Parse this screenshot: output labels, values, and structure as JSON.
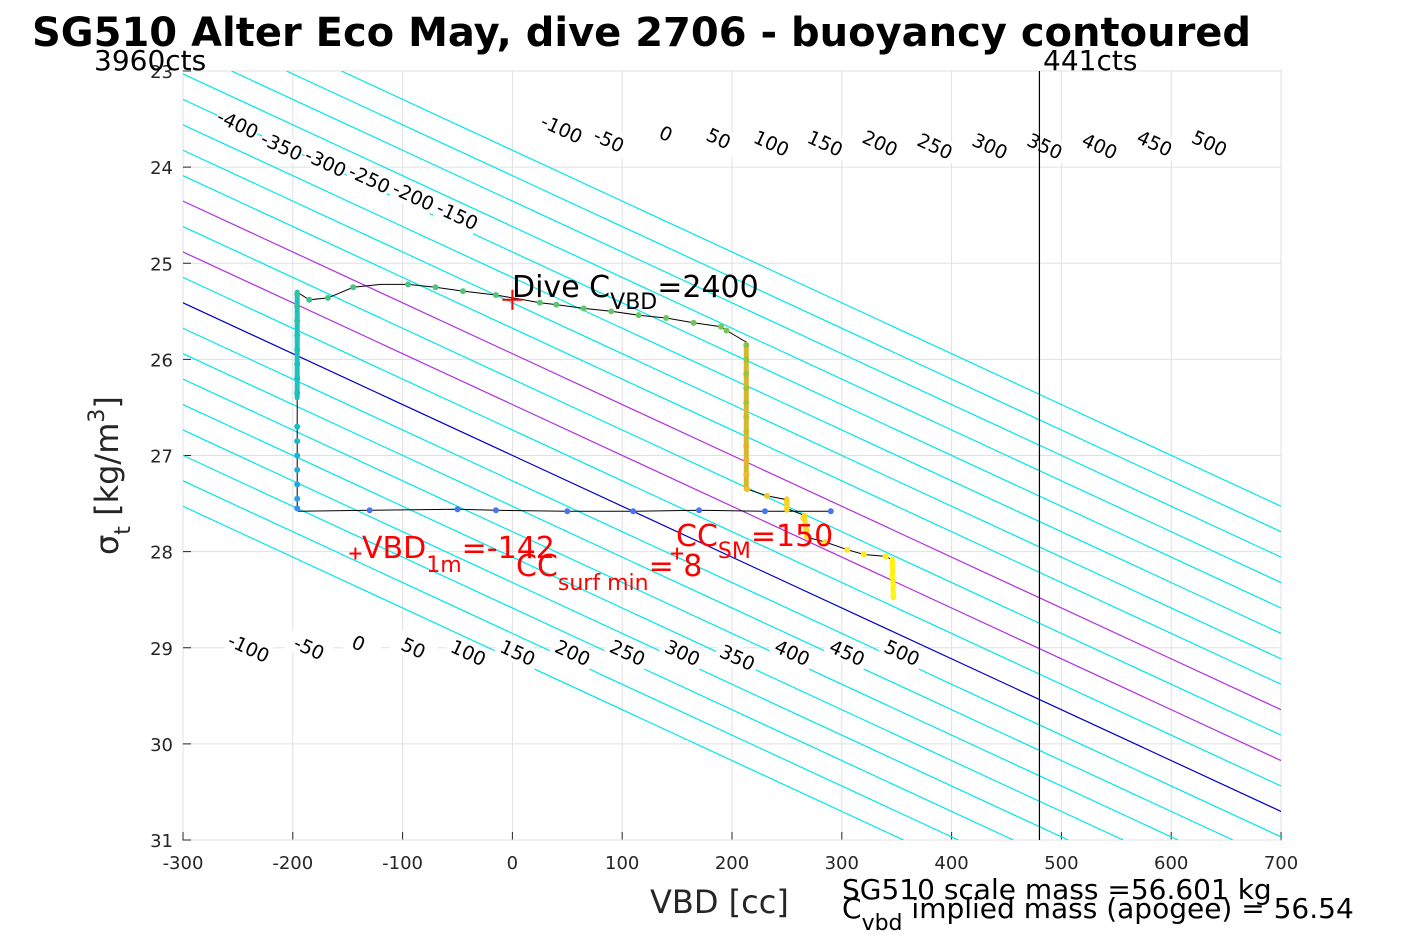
{
  "chart_data": {
    "type": "scatter",
    "title": "SG510 Alter Eco May, dive 2706 - buoyancy contoured",
    "xlabel": "VBD [cc]",
    "ylabel_main": "σ",
    "ylabel_sub": "t",
    "ylabel_unit_pre": " [kg/m",
    "ylabel_unit_sup": "3",
    "ylabel_unit_post": "]",
    "xlim": [
      -300,
      700
    ],
    "ylim": [
      23,
      31
    ],
    "y_reversed": true,
    "grid": true,
    "xticks": [
      "-300",
      "-200",
      "-100",
      "0",
      "100",
      "200",
      "300",
      "400",
      "500",
      "600",
      "700"
    ],
    "yticks": [
      "23",
      "24",
      "25",
      "26",
      "27",
      "28",
      "29",
      "30",
      "31"
    ],
    "corner_labels": {
      "left": "3960cts",
      "right": "441cts"
    },
    "limit_line_x": 480,
    "contour_step": 50,
    "contour_slope_cc_per_sigma": 189,
    "contour_levels": [
      -400,
      -350,
      -300,
      -250,
      -200,
      -150,
      -100,
      -50,
      0,
      50,
      100,
      150,
      200,
      250,
      300,
      350,
      400,
      450,
      500,
      550,
      600
    ],
    "contour_colors": {
      "zero": "#0000cc",
      "highlight": "#b030e0",
      "default": "#00e8e8"
    },
    "highlight_levels": [
      100,
      200
    ],
    "top_contour_labels": [
      {
        "text": "-400",
        "x": -250,
        "y": 23.55
      },
      {
        "text": "-350",
        "x": -210,
        "y": 23.78
      },
      {
        "text": "-300",
        "x": -170,
        "y": 23.95
      },
      {
        "text": "-250",
        "x": -130,
        "y": 24.12
      },
      {
        "text": "-200",
        "x": -90,
        "y": 24.3
      },
      {
        "text": "-150",
        "x": -50,
        "y": 24.5
      },
      {
        "text": "-100",
        "x": 45,
        "y": 23.6
      },
      {
        "text": "-50",
        "x": 88,
        "y": 23.72
      },
      {
        "text": "0",
        "x": 140,
        "y": 23.65
      },
      {
        "text": "50",
        "x": 188,
        "y": 23.7
      },
      {
        "text": "100",
        "x": 236,
        "y": 23.75
      },
      {
        "text": "150",
        "x": 285,
        "y": 23.75
      },
      {
        "text": "200",
        "x": 335,
        "y": 23.75
      },
      {
        "text": "250",
        "x": 385,
        "y": 23.78
      },
      {
        "text": "300",
        "x": 435,
        "y": 23.78
      },
      {
        "text": "350",
        "x": 485,
        "y": 23.78
      },
      {
        "text": "400",
        "x": 535,
        "y": 23.78
      },
      {
        "text": "450",
        "x": 585,
        "y": 23.75
      },
      {
        "text": "500",
        "x": 635,
        "y": 23.75
      }
    ],
    "bottom_contour_labels": [
      {
        "text": "-100",
        "x": -240,
        "y": 29.0
      },
      {
        "text": "-50",
        "x": -185,
        "y": 29.0
      },
      {
        "text": "0",
        "x": -140,
        "y": 28.95
      },
      {
        "text": "50",
        "x": -90,
        "y": 29.0
      },
      {
        "text": "100",
        "x": -40,
        "y": 29.05
      },
      {
        "text": "150",
        "x": 5,
        "y": 29.05
      },
      {
        "text": "200",
        "x": 55,
        "y": 29.05
      },
      {
        "text": "250",
        "x": 105,
        "y": 29.05
      },
      {
        "text": "300",
        "x": 155,
        "y": 29.05
      },
      {
        "text": "350",
        "x": 205,
        "y": 29.1
      },
      {
        "text": "400",
        "x": 255,
        "y": 29.05
      },
      {
        "text": "450",
        "x": 305,
        "y": 29.05
      },
      {
        "text": "500",
        "x": 355,
        "y": 29.05
      }
    ],
    "track": [
      [
        290,
        27.58
      ],
      [
        230,
        27.58
      ],
      [
        170,
        27.57
      ],
      [
        110,
        27.58
      ],
      [
        50,
        27.58
      ],
      [
        -15,
        27.57
      ],
      [
        -50,
        27.56
      ],
      [
        -130,
        27.57
      ],
      [
        -195,
        27.58
      ],
      [
        -196,
        27.55
      ],
      [
        -196,
        27.4
      ],
      [
        -196,
        27.2
      ],
      [
        -196,
        27.0
      ],
      [
        -196,
        26.8
      ],
      [
        -196,
        26.6
      ],
      [
        -196,
        26.4
      ],
      [
        -196,
        26.2
      ],
      [
        -196,
        26.0
      ],
      [
        -196,
        25.8
      ],
      [
        -196,
        25.6
      ],
      [
        -196,
        25.45
      ],
      [
        -196,
        25.3
      ],
      [
        -185,
        25.38
      ],
      [
        -168,
        25.36
      ],
      [
        -145,
        25.25
      ],
      [
        -120,
        25.22
      ],
      [
        -95,
        25.22
      ],
      [
        -70,
        25.25
      ],
      [
        -45,
        25.29
      ],
      [
        -15,
        25.33
      ],
      [
        5,
        25.37
      ],
      [
        25,
        25.41
      ],
      [
        40,
        25.43
      ],
      [
        65,
        25.47
      ],
      [
        90,
        25.5
      ],
      [
        115,
        25.54
      ],
      [
        140,
        25.57
      ],
      [
        165,
        25.62
      ],
      [
        190,
        25.66
      ],
      [
        195,
        25.7
      ],
      [
        213,
        25.82
      ],
      [
        213,
        26.0
      ],
      [
        213,
        26.2
      ],
      [
        213,
        26.4
      ],
      [
        213,
        26.6
      ],
      [
        213,
        26.8
      ],
      [
        213,
        27.0
      ],
      [
        213,
        27.2
      ],
      [
        214,
        27.35
      ],
      [
        232,
        27.42
      ],
      [
        250,
        27.46
      ],
      [
        250,
        27.55
      ],
      [
        265,
        27.62
      ],
      [
        268,
        27.75
      ],
      [
        268,
        27.85
      ],
      [
        285,
        27.9
      ],
      [
        305,
        27.98
      ],
      [
        320,
        28.03
      ],
      [
        340,
        28.05
      ],
      [
        345,
        28.08
      ],
      [
        346,
        28.2
      ],
      [
        347,
        28.3
      ],
      [
        347,
        28.45
      ]
    ],
    "dots": [
      {
        "x": 290,
        "y": 27.58,
        "c": "#4876f0"
      },
      {
        "x": 230,
        "y": 27.58,
        "c": "#4876f0"
      },
      {
        "x": 170,
        "y": 27.57,
        "c": "#4876f0"
      },
      {
        "x": 110,
        "y": 27.58,
        "c": "#4876f0"
      },
      {
        "x": 50,
        "y": 27.58,
        "c": "#4876f0"
      },
      {
        "x": -15,
        "y": 27.57,
        "c": "#4876f0"
      },
      {
        "x": -50,
        "y": 27.56,
        "c": "#4876f0"
      },
      {
        "x": -130,
        "y": 27.57,
        "c": "#4876f0"
      },
      {
        "x": -196,
        "y": 27.55,
        "c": "#3b8ef0"
      },
      {
        "x": -196,
        "y": 27.45,
        "c": "#2a9ee8"
      },
      {
        "x": -196,
        "y": 27.3,
        "c": "#22a8e0"
      },
      {
        "x": -196,
        "y": 27.15,
        "c": "#1cb0d8"
      },
      {
        "x": -196,
        "y": 27.0,
        "c": "#1cb4d2"
      },
      {
        "x": -196,
        "y": 26.85,
        "c": "#18b8cc"
      },
      {
        "x": -196,
        "y": 26.7,
        "c": "#18bcc8"
      },
      {
        "x": -196,
        "y": 26.35,
        "c": "#18bec4"
      },
      {
        "x": -196,
        "y": 26.2,
        "c": "#18c0c0"
      },
      {
        "x": -196,
        "y": 26.05,
        "c": "#18c2bc"
      },
      {
        "x": -196,
        "y": 25.9,
        "c": "#1cc4b6"
      },
      {
        "x": -196,
        "y": 25.75,
        "c": "#20c4b0"
      },
      {
        "x": -196,
        "y": 25.6,
        "c": "#28c4a8"
      },
      {
        "x": -196,
        "y": 25.45,
        "c": "#2ec4a0"
      },
      {
        "x": -196,
        "y": 25.32,
        "c": "#34c498"
      },
      {
        "x": -185,
        "y": 25.38,
        "c": "#3cc490"
      },
      {
        "x": -168,
        "y": 25.36,
        "c": "#40c48c"
      },
      {
        "x": -145,
        "y": 25.25,
        "c": "#46c488"
      },
      {
        "x": -95,
        "y": 25.22,
        "c": "#4cc484"
      },
      {
        "x": -70,
        "y": 25.25,
        "c": "#50c480"
      },
      {
        "x": -45,
        "y": 25.29,
        "c": "#54c47c"
      },
      {
        "x": -15,
        "y": 25.33,
        "c": "#58c478"
      },
      {
        "x": 25,
        "y": 25.41,
        "c": "#5cc474"
      },
      {
        "x": 40,
        "y": 25.43,
        "c": "#60c470"
      },
      {
        "x": 65,
        "y": 25.47,
        "c": "#64c46c"
      },
      {
        "x": 90,
        "y": 25.5,
        "c": "#68c468"
      },
      {
        "x": 115,
        "y": 25.54,
        "c": "#6cc464"
      },
      {
        "x": 140,
        "y": 25.57,
        "c": "#70c460"
      },
      {
        "x": 165,
        "y": 25.62,
        "c": "#74c45c"
      },
      {
        "x": 190,
        "y": 25.66,
        "c": "#78c458"
      },
      {
        "x": 195,
        "y": 25.7,
        "c": "#7cc454"
      },
      {
        "x": 213,
        "y": 25.85,
        "c": "#88c44c"
      },
      {
        "x": 213,
        "y": 26.0,
        "c": "#94c444"
      },
      {
        "x": 213,
        "y": 26.15,
        "c": "#9cc23e"
      },
      {
        "x": 213,
        "y": 26.3,
        "c": "#a6c038"
      },
      {
        "x": 213,
        "y": 26.45,
        "c": "#b0be34"
      },
      {
        "x": 213,
        "y": 26.6,
        "c": "#c0bc30"
      },
      {
        "x": 213,
        "y": 26.75,
        "c": "#d0b82e"
      },
      {
        "x": 213,
        "y": 26.9,
        "c": "#e0b42c"
      },
      {
        "x": 213,
        "y": 27.05,
        "c": "#eab22c"
      },
      {
        "x": 213,
        "y": 27.2,
        "c": "#f2b82a"
      },
      {
        "x": 214,
        "y": 27.35,
        "c": "#f6c028"
      },
      {
        "x": 232,
        "y": 27.42,
        "c": "#f8c826"
      },
      {
        "x": 250,
        "y": 27.48,
        "c": "#fad024"
      },
      {
        "x": 250,
        "y": 27.55,
        "c": "#fad424"
      },
      {
        "x": 265,
        "y": 27.65,
        "c": "#fcd822"
      },
      {
        "x": 268,
        "y": 27.78,
        "c": "#fcdc20"
      },
      {
        "x": 285,
        "y": 27.9,
        "c": "#fde21e"
      },
      {
        "x": 305,
        "y": 27.98,
        "c": "#fde61c"
      },
      {
        "x": 320,
        "y": 28.03,
        "c": "#feea1a"
      },
      {
        "x": 340,
        "y": 28.05,
        "c": "#feee18"
      },
      {
        "x": 346,
        "y": 28.15,
        "c": "#fef216"
      },
      {
        "x": 346,
        "y": 28.25,
        "c": "#fef414"
      },
      {
        "x": 347,
        "y": 28.35,
        "c": "#fff612"
      },
      {
        "x": 347,
        "y": 28.45,
        "c": "#fff810"
      }
    ],
    "thick_segments": [
      {
        "x": [
          -196,
          -196
        ],
        "y": [
          25.3,
          26.4
        ],
        "c": "#20c0c0"
      },
      {
        "x": [
          213,
          213
        ],
        "y": [
          25.85,
          27.35
        ],
        "c": "#d4b830"
      },
      {
        "x": [
          250,
          250
        ],
        "y": [
          27.45,
          27.57
        ],
        "c": "#fad024"
      },
      {
        "x": [
          266,
          268
        ],
        "y": [
          27.62,
          27.85
        ],
        "c": "#fcdc20"
      },
      {
        "x": [
          346,
          347
        ],
        "y": [
          28.08,
          28.48
        ],
        "c": "#fff014"
      }
    ],
    "markers": [
      {
        "x": 0,
        "y": 25.38,
        "c": "#ff0000",
        "size": 10
      },
      {
        "x": -143,
        "y": 28.02,
        "c": "#ff0000",
        "size": 6
      },
      {
        "x": 150,
        "y": 28.02,
        "c": "#ff0000",
        "size": 6
      }
    ],
    "annotations": {
      "dive_cvbd": {
        "pre": "Dive C",
        "sub": "VBD",
        "post": "=2400",
        "color": "#000000"
      },
      "vbd_1m": {
        "pre": "VBD",
        "sub": "1m",
        "post": "=-142",
        "color": "#ff0000"
      },
      "cc_sm": {
        "pre": "CC",
        "sub": "SM",
        "post": "=150",
        "color": "#ff0000"
      },
      "cc_surf": {
        "pre": "CC",
        "sub": "surf min",
        "post": "=  8",
        "color": "#ff0000"
      }
    },
    "mass_text": {
      "line1": "SG510 scale mass =56.601 kg",
      "line2_pre": "C",
      "line2_sub": "vbd",
      "line2_post": " implied mass (apogee) = 56.54"
    }
  }
}
